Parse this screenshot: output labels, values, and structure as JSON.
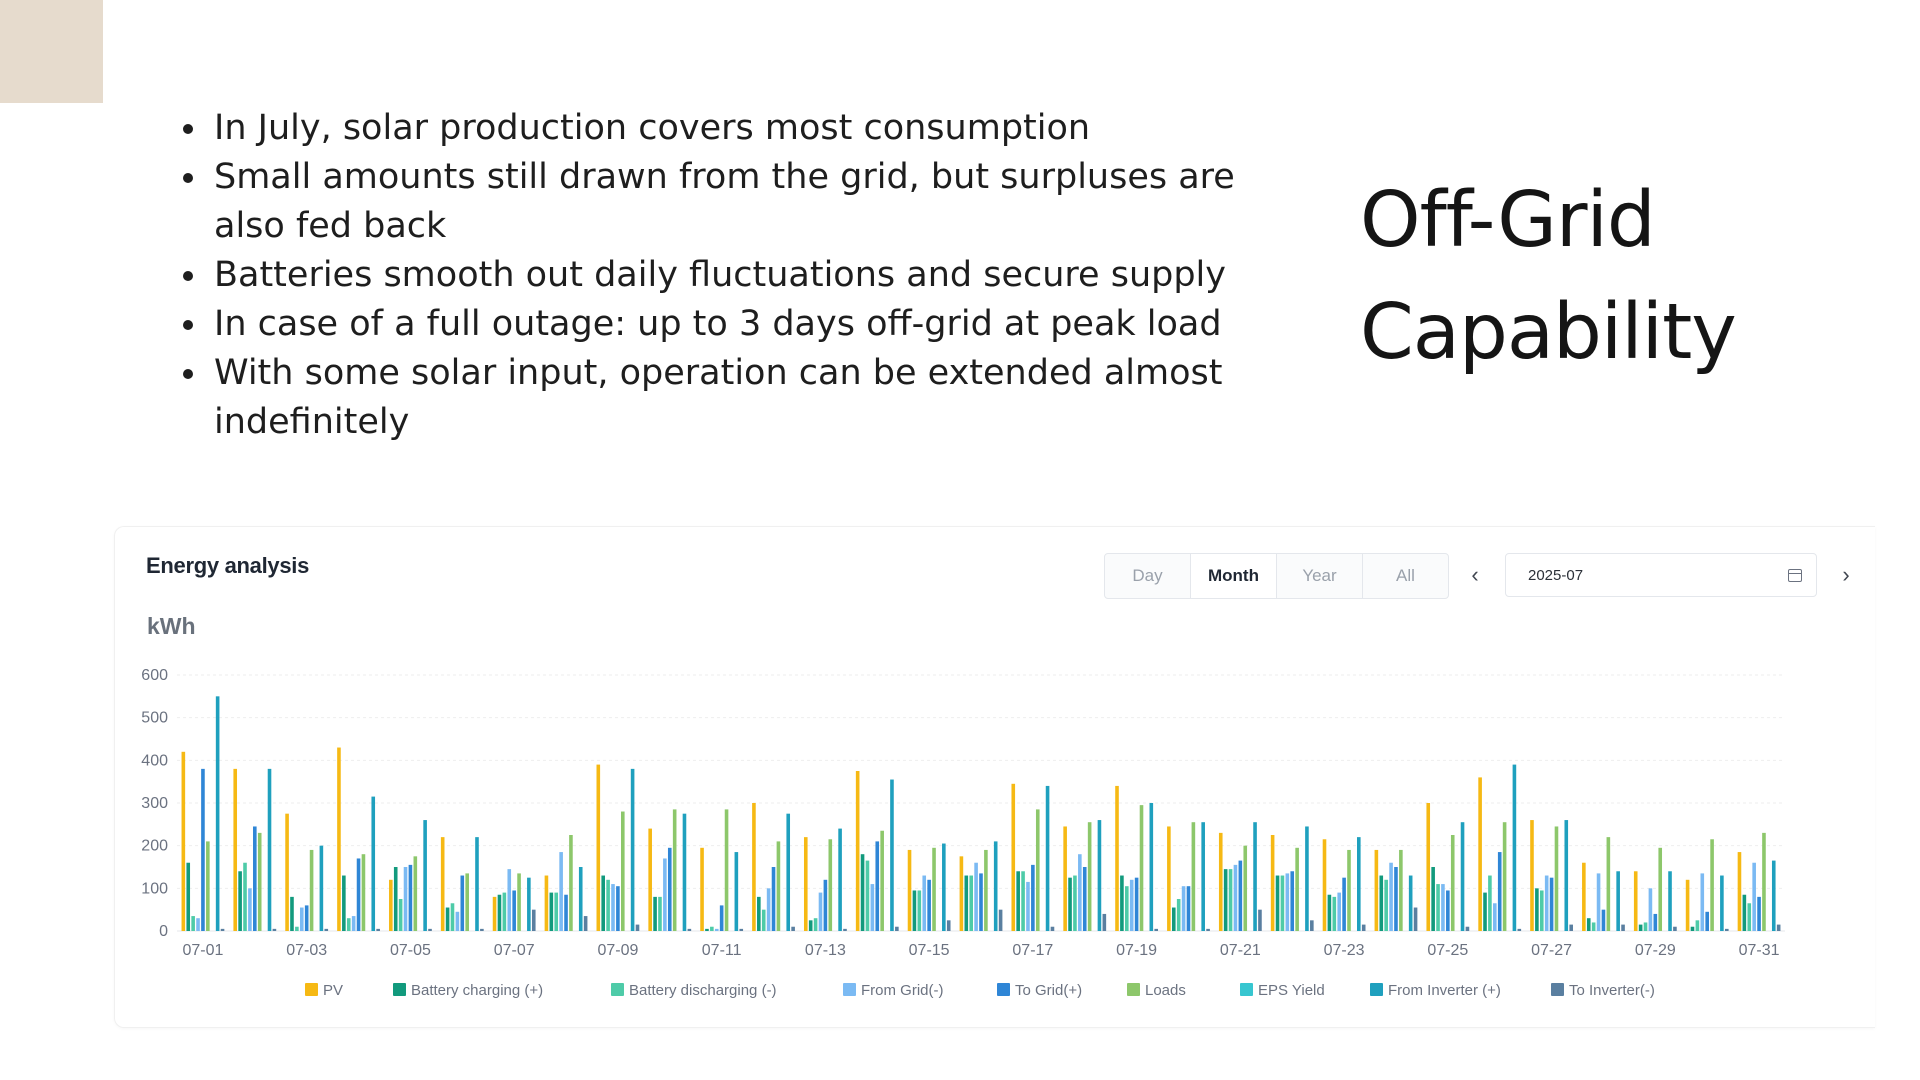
{
  "slide": {
    "title": "Off-Grid Capability",
    "bullets": [
      "In July, solar production covers most consumption",
      "Small amounts still drawn from the grid, but surpluses are also fed back",
      "Batteries smooth out daily fluctuations and secure supply",
      "In case of a full outage: up to 3 days off-grid at peak load",
      "With some solar input, operation can be extended almost indefinitely"
    ]
  },
  "panel": {
    "title": "Energy analysis",
    "tabs": [
      {
        "label": "Day",
        "active": false
      },
      {
        "label": "Month",
        "active": true
      },
      {
        "label": "Year",
        "active": false
      },
      {
        "label": "All",
        "active": false
      }
    ],
    "date": "2025-07",
    "prev_icon": "chevron-left-icon",
    "next_icon": "chevron-right-icon",
    "calendar_icon": "calendar-icon"
  },
  "chart_data": {
    "type": "bar",
    "unit": "kWh",
    "ylim": [
      0,
      600
    ],
    "yticks": [
      0,
      100,
      200,
      300,
      400,
      500,
      600
    ],
    "grid": true,
    "legend_position": "bottom",
    "categories": [
      "07-01",
      "07-02",
      "07-03",
      "07-04",
      "07-05",
      "07-06",
      "07-07",
      "07-08",
      "07-09",
      "07-10",
      "07-11",
      "07-12",
      "07-13",
      "07-14",
      "07-15",
      "07-16",
      "07-17",
      "07-18",
      "07-19",
      "07-20",
      "07-21",
      "07-22",
      "07-23",
      "07-24",
      "07-25",
      "07-26",
      "07-27",
      "07-28",
      "07-29",
      "07-30",
      "07-31"
    ],
    "xtick_labels": [
      "07-01",
      "07-03",
      "07-05",
      "07-07",
      "07-09",
      "07-11",
      "07-13",
      "07-15",
      "07-17",
      "07-19",
      "07-21",
      "07-23",
      "07-25",
      "07-27",
      "07-29",
      "07-31"
    ],
    "series": [
      {
        "name": "PV",
        "color": "#f6b914",
        "values": [
          420,
          380,
          275,
          430,
          120,
          220,
          80,
          130,
          390,
          240,
          195,
          300,
          220,
          375,
          190,
          175,
          345,
          245,
          340,
          245,
          230,
          225,
          215,
          190,
          300,
          360,
          260,
          160,
          140,
          120,
          185
        ]
      },
      {
        "name": "Battery charging  (+)",
        "color": "#129a7d",
        "values": [
          160,
          140,
          80,
          130,
          150,
          55,
          85,
          90,
          130,
          80,
          5,
          80,
          25,
          180,
          95,
          130,
          140,
          125,
          130,
          55,
          145,
          130,
          85,
          130,
          150,
          90,
          100,
          30,
          15,
          10,
          85
        ]
      },
      {
        "name": "Battery discharging  (-)",
        "color": "#4ecba8",
        "values": [
          35,
          160,
          10,
          30,
          75,
          65,
          90,
          90,
          120,
          80,
          10,
          50,
          30,
          165,
          95,
          130,
          140,
          130,
          105,
          75,
          145,
          130,
          80,
          120,
          110,
          130,
          95,
          20,
          20,
          25,
          65
        ]
      },
      {
        "name": "From Grid(-)",
        "color": "#7bbaf3",
        "values": [
          30,
          100,
          55,
          35,
          150,
          45,
          145,
          185,
          110,
          170,
          5,
          100,
          90,
          110,
          130,
          160,
          115,
          180,
          120,
          105,
          155,
          135,
          90,
          160,
          110,
          65,
          130,
          135,
          100,
          135,
          160
        ]
      },
      {
        "name": "To Grid(+)",
        "color": "#2f86d6",
        "values": [
          380,
          245,
          60,
          170,
          155,
          130,
          95,
          85,
          105,
          195,
          60,
          150,
          120,
          210,
          120,
          135,
          155,
          150,
          125,
          105,
          165,
          140,
          125,
          150,
          95,
          185,
          125,
          50,
          40,
          45,
          80
        ]
      },
      {
        "name": "Loads",
        "color": "#8dc76b",
        "values": [
          210,
          230,
          190,
          180,
          175,
          135,
          135,
          225,
          280,
          285,
          285,
          210,
          215,
          235,
          195,
          190,
          285,
          255,
          295,
          255,
          200,
          195,
          190,
          190,
          225,
          255,
          245,
          220,
          195,
          215,
          230
        ]
      },
      {
        "name": "EPS Yield",
        "color": "#37c6d0",
        "values": [
          0,
          0,
          0,
          0,
          0,
          0,
          0,
          0,
          0,
          0,
          0,
          0,
          0,
          0,
          0,
          0,
          0,
          0,
          0,
          0,
          0,
          0,
          0,
          0,
          0,
          0,
          0,
          0,
          0,
          0,
          0
        ]
      },
      {
        "name": "From Inverter (+)",
        "color": "#1fa0be",
        "values": [
          550,
          380,
          200,
          315,
          260,
          220,
          125,
          150,
          380,
          275,
          185,
          275,
          240,
          355,
          205,
          210,
          340,
          260,
          300,
          255,
          255,
          245,
          220,
          130,
          255,
          390,
          260,
          140,
          140,
          130,
          165
        ]
      },
      {
        "name": "To Inverter(-)",
        "color": "#5a7fa0",
        "values": [
          5,
          5,
          5,
          5,
          5,
          5,
          50,
          35,
          15,
          5,
          5,
          10,
          5,
          10,
          25,
          50,
          10,
          40,
          5,
          5,
          50,
          25,
          15,
          55,
          10,
          5,
          15,
          15,
          10,
          5,
          15
        ]
      }
    ]
  }
}
